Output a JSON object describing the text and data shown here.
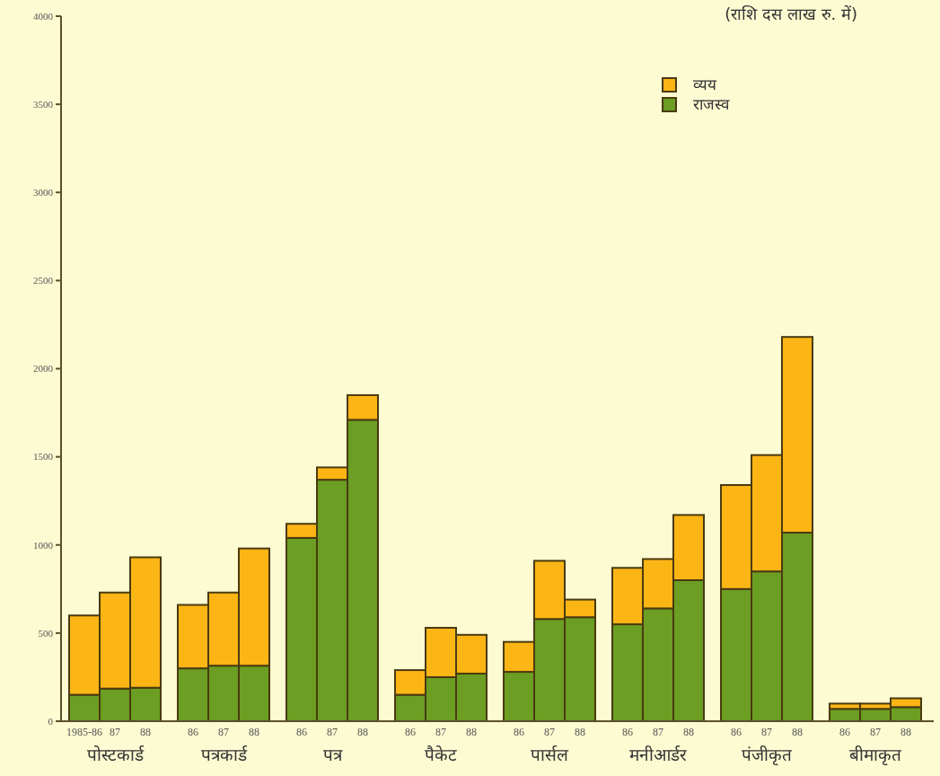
{
  "chart_data": {
    "type": "bar",
    "stacked": true,
    "categories": [
      "1985-86",
      "87",
      "88",
      "86",
      "87",
      "88",
      "86",
      "87",
      "88",
      "86",
      "87",
      "88",
      "86",
      "87",
      "88",
      "86",
      "87",
      "88",
      "86",
      "87",
      "88",
      "86",
      "87",
      "88"
    ],
    "series": [
      {
        "name": "राजस्व",
        "color": "#6b9e22",
        "values": [
          150,
          185,
          190,
          300,
          315,
          315,
          1040,
          1370,
          1710,
          150,
          250,
          270,
          280,
          580,
          590,
          550,
          640,
          800,
          750,
          850,
          1070,
          70,
          70,
          80
        ]
      },
      {
        "name": "व्यय",
        "color": "#fbb515",
        "values": [
          450,
          545,
          740,
          360,
          415,
          665,
          80,
          70,
          140,
          140,
          280,
          220,
          170,
          330,
          100,
          320,
          280,
          370,
          590,
          660,
          1110,
          30,
          30,
          50
        ]
      }
    ],
    "ylim": [
      0,
      4000
    ],
    "yticks": [
      0,
      500,
      1000,
      1500,
      2000,
      2500,
      3000,
      3500,
      4000
    ],
    "legend": "top right",
    "annotations": [
      "(राशि दस लाख रु. में)",
      "पोस्टकार्ड",
      "पत्रकार्ड",
      "पत्र",
      "पैकेट",
      "पार्सल",
      "मनीआर्डर",
      "पंजीकृत",
      "बीमाकृत"
    ]
  }
}
